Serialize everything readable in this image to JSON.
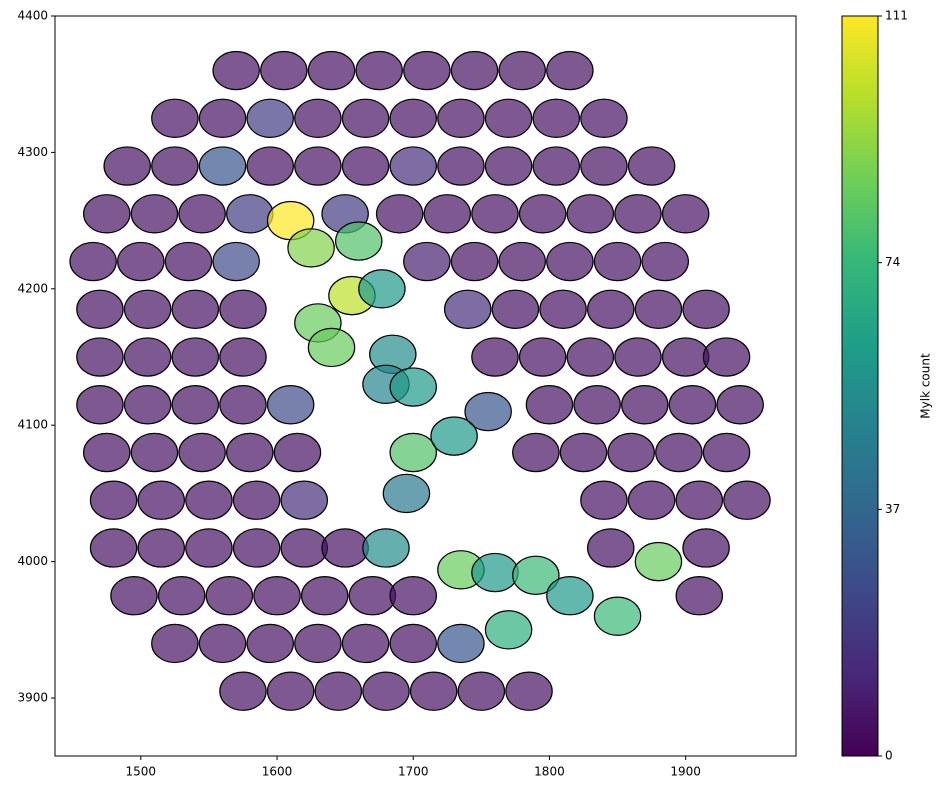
{
  "chart_data": {
    "type": "scatter",
    "colorbar_label": "Mylk count",
    "colormap": "viridis",
    "clim": [
      0,
      111
    ],
    "cticks": [
      0,
      37,
      74,
      111
    ],
    "xlim": [
      1437,
      1981
    ],
    "ylim": [
      3857.5,
      4400
    ],
    "xticks": [
      1500,
      1600,
      1700,
      1800,
      1900
    ],
    "yticks": [
      3900,
      4000,
      4100,
      4200,
      4300,
      4400
    ],
    "grid": false,
    "x": [
      1570,
      1605,
      1640,
      1675,
      1710,
      1745,
      1780,
      1815,
      1525,
      1560,
      1595,
      1630,
      1665,
      1700,
      1735,
      1770,
      1805,
      1840,
      1490,
      1525,
      1560,
      1595,
      1630,
      1665,
      1700,
      1735,
      1770,
      1805,
      1840,
      1875,
      1475,
      1510,
      1545,
      1580,
      1610,
      1650,
      1690,
      1725,
      1760,
      1795,
      1830,
      1865,
      1900,
      1465,
      1500,
      1535,
      1570,
      1625,
      1660,
      1710,
      1745,
      1780,
      1815,
      1850,
      1885,
      1470,
      1505,
      1540,
      1575,
      1655,
      1677,
      1740,
      1775,
      1810,
      1845,
      1880,
      1915,
      1470,
      1505,
      1540,
      1575,
      1630,
      1640,
      1685,
      1760,
      1795,
      1830,
      1865,
      1900,
      1930,
      1470,
      1505,
      1540,
      1575,
      1610,
      1680,
      1700,
      1755,
      1800,
      1835,
      1870,
      1905,
      1940,
      1475,
      1510,
      1545,
      1580,
      1615,
      1700,
      1730,
      1790,
      1825,
      1860,
      1895,
      1930,
      1480,
      1515,
      1550,
      1585,
      1620,
      1695,
      1840,
      1875,
      1910,
      1945,
      1480,
      1515,
      1550,
      1585,
      1620,
      1650,
      1680,
      1845,
      1880,
      1915,
      1495,
      1530,
      1565,
      1600,
      1635,
      1670,
      1700,
      1735,
      1760,
      1790,
      1815,
      1910,
      1525,
      1560,
      1595,
      1630,
      1665,
      1700,
      1735,
      1770,
      1850,
      1575,
      1610,
      1645,
      1680,
      1715,
      1750,
      1785
    ],
    "y": [
      4360,
      4360,
      4360,
      4360,
      4360,
      4360,
      4360,
      4360,
      4325,
      4325,
      4325,
      4325,
      4325,
      4325,
      4325,
      4325,
      4325,
      4325,
      4290,
      4290,
      4290,
      4290,
      4290,
      4290,
      4290,
      4290,
      4290,
      4290,
      4290,
      4290,
      4255,
      4255,
      4255,
      4255,
      4250,
      4255,
      4255,
      4255,
      4255,
      4255,
      4255,
      4255,
      4255,
      4220,
      4220,
      4220,
      4220,
      4230,
      4235,
      4220,
      4220,
      4220,
      4220,
      4220,
      4220,
      4185,
      4185,
      4185,
      4185,
      4195,
      4200,
      4185,
      4185,
      4185,
      4185,
      4185,
      4185,
      4150,
      4150,
      4150,
      4150,
      4175,
      4157,
      4152,
      4150,
      4150,
      4150,
      4150,
      4150,
      4150,
      4115,
      4115,
      4115,
      4115,
      4115,
      4130,
      4128,
      4110,
      4115,
      4115,
      4115,
      4115,
      4115,
      4080,
      4080,
      4080,
      4080,
      4080,
      4080,
      4092,
      4080,
      4080,
      4080,
      4080,
      4080,
      4045,
      4045,
      4045,
      4045,
      4045,
      4050,
      4045,
      4045,
      4045,
      4045,
      4010,
      4010,
      4010,
      4010,
      4010,
      4010,
      4010,
      4010,
      4000,
      4010,
      3975,
      3975,
      3975,
      3975,
      3975,
      3975,
      3975,
      3994,
      3992,
      3990,
      3975,
      3975,
      3940,
      3940,
      3940,
      3940,
      3940,
      3940,
      3940,
      3950,
      3960,
      3905,
      3905,
      3905,
      3905,
      3905,
      3905,
      3905
    ],
    "values": [
      5,
      5,
      5,
      5,
      5,
      5,
      5,
      5,
      5,
      5,
      20,
      5,
      5,
      5,
      5,
      5,
      5,
      5,
      5,
      5,
      30,
      5,
      5,
      5,
      15,
      5,
      5,
      5,
      5,
      5,
      5,
      5,
      5,
      20,
      111,
      20,
      5,
      5,
      5,
      5,
      5,
      5,
      5,
      5,
      5,
      5,
      25,
      90,
      80,
      10,
      5,
      5,
      5,
      5,
      5,
      5,
      5,
      5,
      5,
      100,
      60,
      15,
      5,
      5,
      5,
      5,
      5,
      5,
      5,
      5,
      5,
      85,
      85,
      55,
      5,
      5,
      5,
      5,
      5,
      5,
      5,
      5,
      5,
      5,
      25,
      50,
      60,
      30,
      5,
      5,
      5,
      5,
      5,
      5,
      5,
      5,
      5,
      5,
      80,
      60,
      5,
      5,
      5,
      5,
      5,
      5,
      5,
      5,
      5,
      15,
      45,
      5,
      5,
      5,
      5,
      5,
      5,
      5,
      5,
      5,
      5,
      55,
      5,
      85,
      5,
      5,
      5,
      5,
      5,
      5,
      5,
      5,
      85,
      60,
      75,
      60,
      5,
      5,
      5,
      5,
      5,
      5,
      5,
      30,
      70,
      75,
      5,
      5,
      5,
      5,
      5,
      5,
      5
    ]
  }
}
